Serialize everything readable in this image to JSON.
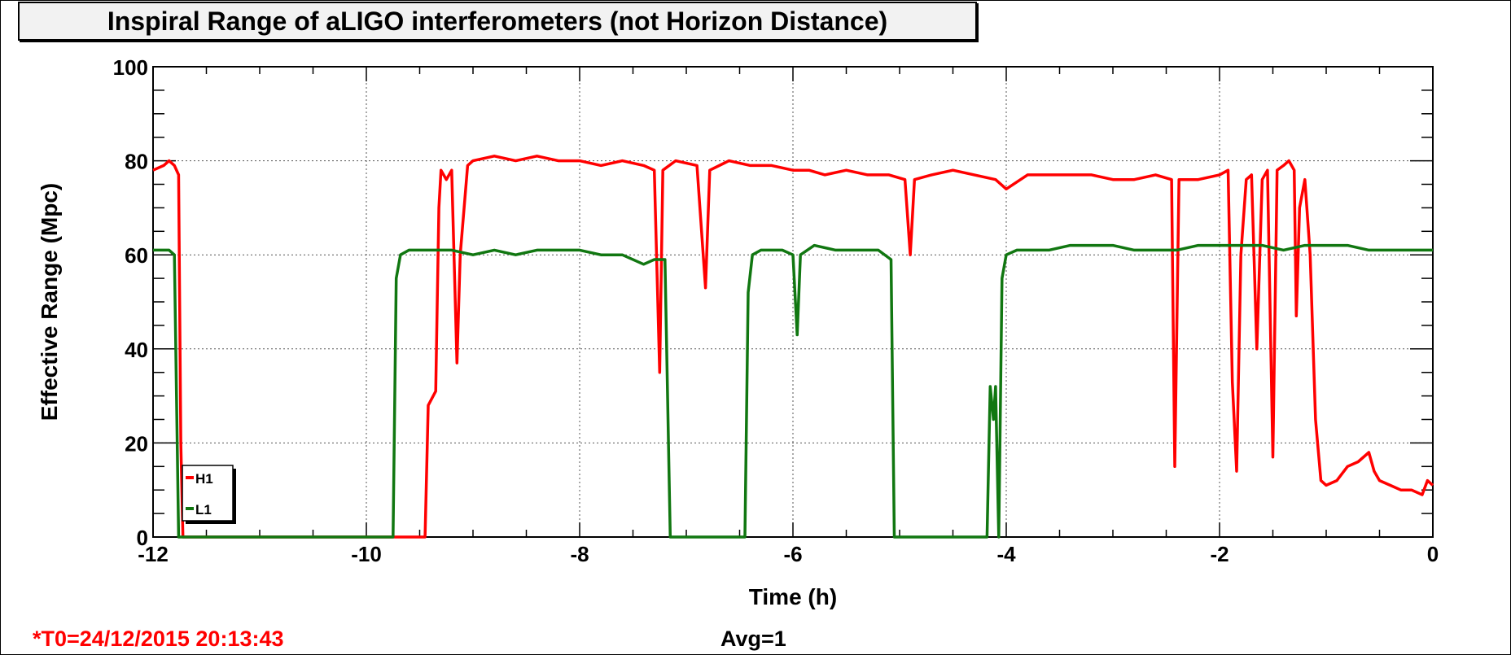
{
  "header": {
    "title": "Inspiral Range of aLIGO interferometers (not Horizon Distance)"
  },
  "footer": {
    "t0": "*T0=24/12/2015 20:13:43",
    "avg": "Avg=1"
  },
  "colors": {
    "H1": "#ff0000",
    "L1": "#117711"
  },
  "chart_data": {
    "type": "line",
    "title": "Inspiral Range of aLIGO interferometers (not Horizon Distance)",
    "xlabel": "Time (h)",
    "ylabel": "Effective Range (Mpc)",
    "xlim": [
      -12,
      0
    ],
    "ylim": [
      0,
      100
    ],
    "xticks": [
      -12,
      -10,
      -8,
      -6,
      -4,
      -2,
      0
    ],
    "yticks": [
      0,
      20,
      40,
      60,
      80,
      100
    ],
    "grid": true,
    "legend": "bottom-left",
    "series": [
      {
        "name": "H1",
        "color": "#ff0000",
        "points": [
          [
            -12.0,
            78
          ],
          [
            -11.9,
            79
          ],
          [
            -11.85,
            80
          ],
          [
            -11.8,
            79
          ],
          [
            -11.76,
            77
          ],
          [
            -11.74,
            20
          ],
          [
            -11.72,
            0
          ],
          [
            -10.0,
            0
          ],
          [
            -9.45,
            0
          ],
          [
            -9.42,
            28
          ],
          [
            -9.35,
            31
          ],
          [
            -9.32,
            70
          ],
          [
            -9.3,
            78
          ],
          [
            -9.25,
            76
          ],
          [
            -9.2,
            78
          ],
          [
            -9.15,
            37
          ],
          [
            -9.12,
            60
          ],
          [
            -9.05,
            79
          ],
          [
            -9.0,
            80
          ],
          [
            -8.8,
            81
          ],
          [
            -8.6,
            80
          ],
          [
            -8.4,
            81
          ],
          [
            -8.2,
            80
          ],
          [
            -8.0,
            80
          ],
          [
            -7.8,
            79
          ],
          [
            -7.6,
            80
          ],
          [
            -7.4,
            79
          ],
          [
            -7.3,
            78
          ],
          [
            -7.25,
            35
          ],
          [
            -7.22,
            78
          ],
          [
            -7.1,
            80
          ],
          [
            -6.9,
            79
          ],
          [
            -6.82,
            53
          ],
          [
            -6.78,
            78
          ],
          [
            -6.6,
            80
          ],
          [
            -6.4,
            79
          ],
          [
            -6.2,
            79
          ],
          [
            -6.0,
            78
          ],
          [
            -5.85,
            78
          ],
          [
            -5.7,
            77
          ],
          [
            -5.5,
            78
          ],
          [
            -5.3,
            77
          ],
          [
            -5.1,
            77
          ],
          [
            -4.95,
            76
          ],
          [
            -4.9,
            60
          ],
          [
            -4.86,
            76
          ],
          [
            -4.7,
            77
          ],
          [
            -4.5,
            78
          ],
          [
            -4.3,
            77
          ],
          [
            -4.1,
            76
          ],
          [
            -4.0,
            74
          ],
          [
            -3.8,
            77
          ],
          [
            -3.6,
            77
          ],
          [
            -3.4,
            77
          ],
          [
            -3.2,
            77
          ],
          [
            -3.0,
            76
          ],
          [
            -2.8,
            76
          ],
          [
            -2.6,
            77
          ],
          [
            -2.45,
            76
          ],
          [
            -2.42,
            15
          ],
          [
            -2.38,
            76
          ],
          [
            -2.2,
            76
          ],
          [
            -2.0,
            77
          ],
          [
            -1.92,
            78
          ],
          [
            -1.88,
            33
          ],
          [
            -1.84,
            14
          ],
          [
            -1.8,
            60
          ],
          [
            -1.75,
            76
          ],
          [
            -1.7,
            77
          ],
          [
            -1.65,
            40
          ],
          [
            -1.6,
            76
          ],
          [
            -1.55,
            78
          ],
          [
            -1.5,
            17
          ],
          [
            -1.46,
            78
          ],
          [
            -1.4,
            79
          ],
          [
            -1.35,
            80
          ],
          [
            -1.3,
            78
          ],
          [
            -1.28,
            47
          ],
          [
            -1.25,
            70
          ],
          [
            -1.2,
            76
          ],
          [
            -1.15,
            60
          ],
          [
            -1.1,
            25
          ],
          [
            -1.05,
            12
          ],
          [
            -1.0,
            11
          ],
          [
            -0.9,
            12
          ],
          [
            -0.8,
            15
          ],
          [
            -0.7,
            16
          ],
          [
            -0.6,
            18
          ],
          [
            -0.55,
            14
          ],
          [
            -0.5,
            12
          ],
          [
            -0.4,
            11
          ],
          [
            -0.3,
            10
          ],
          [
            -0.2,
            10
          ],
          [
            -0.1,
            9
          ],
          [
            -0.05,
            12
          ],
          [
            0.0,
            11
          ]
        ]
      },
      {
        "name": "L1",
        "color": "#117711",
        "points": [
          [
            -12.0,
            61
          ],
          [
            -11.85,
            61
          ],
          [
            -11.8,
            60
          ],
          [
            -11.78,
            30
          ],
          [
            -11.76,
            0
          ],
          [
            -9.75,
            0
          ],
          [
            -9.72,
            55
          ],
          [
            -9.68,
            60
          ],
          [
            -9.6,
            61
          ],
          [
            -9.4,
            61
          ],
          [
            -9.2,
            61
          ],
          [
            -9.0,
            60
          ],
          [
            -8.8,
            61
          ],
          [
            -8.6,
            60
          ],
          [
            -8.4,
            61
          ],
          [
            -8.2,
            61
          ],
          [
            -8.0,
            61
          ],
          [
            -7.8,
            60
          ],
          [
            -7.6,
            60
          ],
          [
            -7.4,
            58
          ],
          [
            -7.3,
            59
          ],
          [
            -7.2,
            59
          ],
          [
            -7.15,
            0
          ],
          [
            -6.45,
            0
          ],
          [
            -6.42,
            52
          ],
          [
            -6.38,
            60
          ],
          [
            -6.3,
            61
          ],
          [
            -6.1,
            61
          ],
          [
            -6.0,
            60
          ],
          [
            -5.96,
            43
          ],
          [
            -5.93,
            60
          ],
          [
            -5.8,
            62
          ],
          [
            -5.6,
            61
          ],
          [
            -5.4,
            61
          ],
          [
            -5.2,
            61
          ],
          [
            -5.08,
            59
          ],
          [
            -5.05,
            0
          ],
          [
            -4.18,
            0
          ],
          [
            -4.15,
            32
          ],
          [
            -4.12,
            25
          ],
          [
            -4.1,
            32
          ],
          [
            -4.07,
            0
          ],
          [
            -4.04,
            55
          ],
          [
            -4.0,
            60
          ],
          [
            -3.9,
            61
          ],
          [
            -3.8,
            61
          ],
          [
            -3.6,
            61
          ],
          [
            -3.4,
            62
          ],
          [
            -3.2,
            62
          ],
          [
            -3.0,
            62
          ],
          [
            -2.8,
            61
          ],
          [
            -2.6,
            61
          ],
          [
            -2.4,
            61
          ],
          [
            -2.2,
            62
          ],
          [
            -2.0,
            62
          ],
          [
            -1.8,
            62
          ],
          [
            -1.6,
            62
          ],
          [
            -1.4,
            61
          ],
          [
            -1.2,
            62
          ],
          [
            -1.0,
            62
          ],
          [
            -0.8,
            62
          ],
          [
            -0.6,
            61
          ],
          [
            -0.4,
            61
          ],
          [
            -0.2,
            61
          ],
          [
            0.0,
            61
          ]
        ]
      }
    ]
  }
}
